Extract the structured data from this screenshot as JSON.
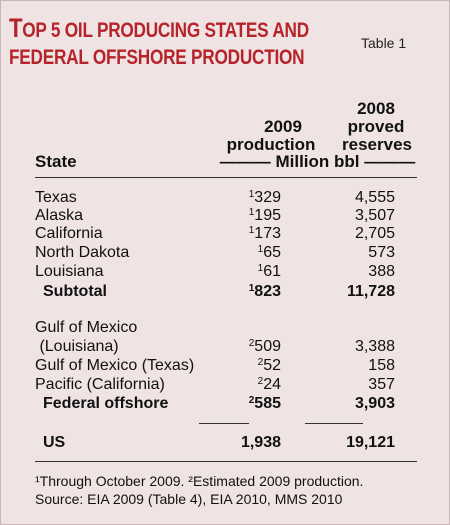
{
  "title_line1_first": "T",
  "title_line1_rest": "OP 5 OIL PRODUCING STATES AND",
  "title_line2": "FEDERAL OFFSHORE PRODUCTION",
  "table_label": "Table 1",
  "headers": {
    "state": "State",
    "prod_year": "2009",
    "prod_word": "production",
    "res_year": "2008",
    "res_word1": "proved",
    "res_word2": "reserves",
    "units": "——— Million bbl ———"
  },
  "state_rows": [
    {
      "state": "Texas",
      "note": "1",
      "production": "329",
      "reserves": "4,555"
    },
    {
      "state": "Alaska",
      "note": "1",
      "production": "195",
      "reserves": "3,507"
    },
    {
      "state": "California",
      "note": "1",
      "production": "173",
      "reserves": "2,705"
    },
    {
      "state": "North Dakota",
      "note": "1",
      "production": "65",
      "reserves": "573"
    },
    {
      "state": "Louisiana",
      "note": "1",
      "production": "61",
      "reserves": "388"
    }
  ],
  "subtotal": {
    "state": "Subtotal",
    "note": "1",
    "production": "823",
    "reserves": "11,728"
  },
  "offshore_rows": [
    {
      "state": "Gulf of Mexico",
      "note": "",
      "production": "",
      "reserves": ""
    },
    {
      "state": " (Louisiana)",
      "note": "2",
      "production": "509",
      "reserves": "3,388"
    },
    {
      "state": "Gulf of Mexico (Texas)",
      "note": "2",
      "production": "52",
      "reserves": "158"
    },
    {
      "state": "Pacific (California)",
      "note": "2",
      "production": "24",
      "reserves": "357"
    }
  ],
  "federal": {
    "state": "Federal offshore",
    "note": "2",
    "production": "585",
    "reserves": "3,903"
  },
  "us": {
    "state": "US",
    "production": "1,938",
    "reserves": "19,121"
  },
  "footnote1": "¹Through October 2009. ²Estimated 2009 production.",
  "footnote2": "Source: EIA 2009 (Table 4), EIA 2010, MMS 2010"
}
